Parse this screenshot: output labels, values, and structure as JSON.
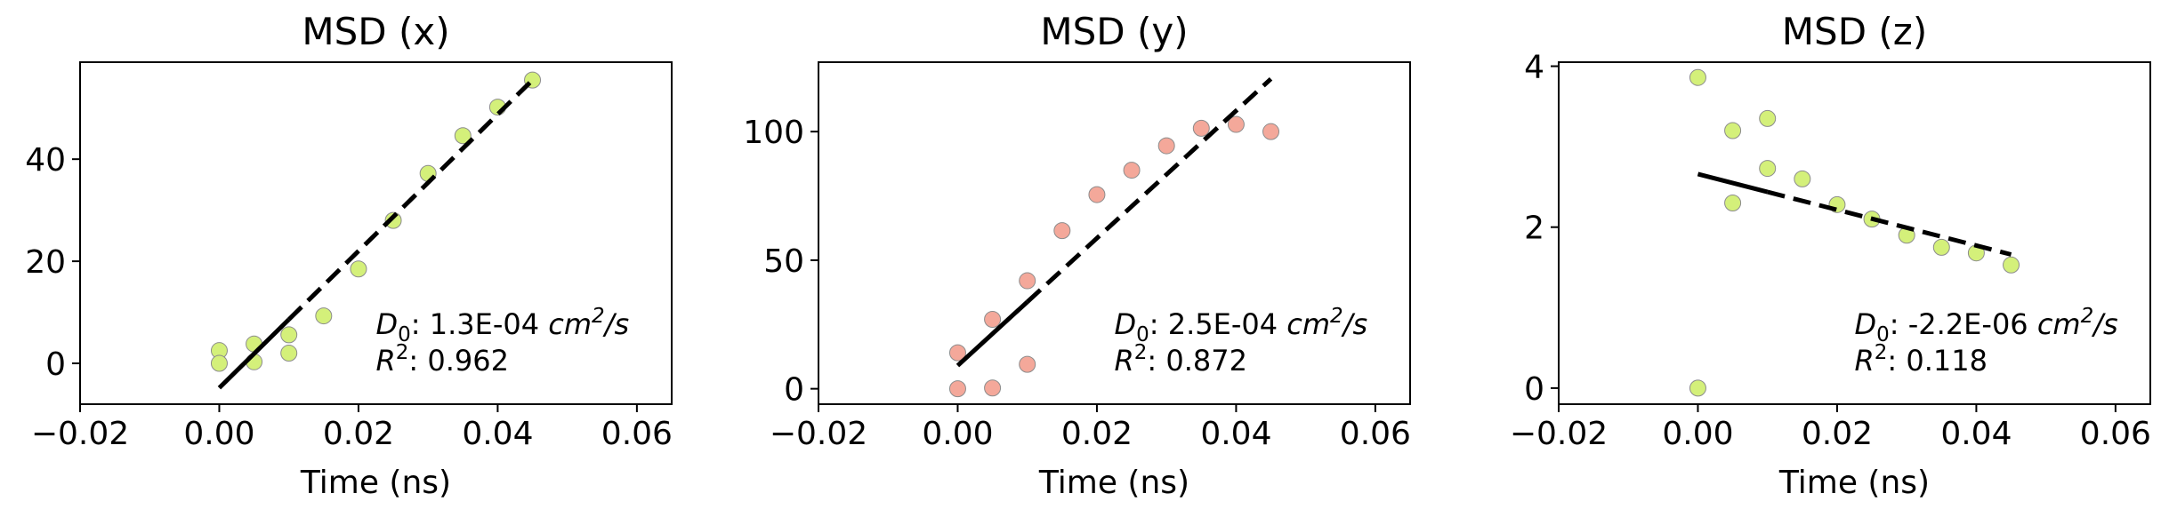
{
  "chart_data": [
    {
      "type": "scatter",
      "title": "MSD (x)",
      "xlabel": "Time (ns)",
      "ylabel": "",
      "xlim": [
        -0.02,
        0.065
      ],
      "ylim": [
        -8,
        59
      ],
      "xticks": [
        -0.02,
        0.0,
        0.02,
        0.04,
        0.06
      ],
      "xtick_labels": [
        "−0.02",
        "0.00",
        "0.02",
        "0.04",
        "0.06"
      ],
      "yticks": [
        0,
        20,
        40
      ],
      "ytick_labels": [
        "0",
        "20",
        "40"
      ],
      "marker_color": "#d4f07a",
      "points": [
        [
          0.0,
          2.5
        ],
        [
          0.0,
          0.0
        ],
        [
          0.005,
          3.8
        ],
        [
          0.005,
          0.3
        ],
        [
          0.01,
          5.6
        ],
        [
          0.01,
          2.0
        ],
        [
          0.015,
          9.3
        ],
        [
          0.02,
          18.5
        ],
        [
          0.025,
          28.0
        ],
        [
          0.03,
          37.2
        ],
        [
          0.035,
          44.6
        ],
        [
          0.04,
          50.2
        ],
        [
          0.045,
          55.5
        ]
      ],
      "fit_line": {
        "x": [
          0.0,
          0.045
        ],
        "y": [
          -4.8,
          55.5
        ],
        "solid_until": 0.01
      },
      "annotation": {
        "d0_label": "D",
        "d0_sub": "0",
        "d0_value": ": 1.3E-04 ",
        "d0_unit": "cm",
        "d0_unit_sup": "2",
        "d0_unit_tail": "/s",
        "r2_label": "R",
        "r2_sup": "2",
        "r2_value": ": 0.962"
      }
    },
    {
      "type": "scatter",
      "title": "MSD (y)",
      "xlabel": "Time (ns)",
      "ylabel": "",
      "xlim": [
        -0.02,
        0.065
      ],
      "ylim": [
        -6,
        127
      ],
      "xticks": [
        -0.02,
        0.0,
        0.02,
        0.04,
        0.06
      ],
      "xtick_labels": [
        "−0.02",
        "0.00",
        "0.02",
        "0.04",
        "0.06"
      ],
      "yticks": [
        0,
        50,
        100
      ],
      "ytick_labels": [
        "0",
        "50",
        "100"
      ],
      "marker_color": "#f4a89a",
      "points": [
        [
          0.0,
          14.0
        ],
        [
          0.0,
          0.0
        ],
        [
          0.005,
          27.0
        ],
        [
          0.005,
          0.3
        ],
        [
          0.01,
          42.0
        ],
        [
          0.01,
          9.5
        ],
        [
          0.015,
          61.5
        ],
        [
          0.02,
          75.5
        ],
        [
          0.025,
          85.0
        ],
        [
          0.03,
          94.5
        ],
        [
          0.035,
          101.3
        ],
        [
          0.04,
          102.8
        ],
        [
          0.045,
          100.0
        ]
      ],
      "fit_line": {
        "x": [
          0.0,
          0.045
        ],
        "y": [
          9.0,
          120.5
        ],
        "solid_until": 0.01
      },
      "annotation": {
        "d0_label": "D",
        "d0_sub": "0",
        "d0_value": ": 2.5E-04 ",
        "d0_unit": "cm",
        "d0_unit_sup": "2",
        "d0_unit_tail": "/s",
        "r2_label": "R",
        "r2_sup": "2",
        "r2_value": ": 0.872"
      }
    },
    {
      "type": "scatter",
      "title": "MSD (z)",
      "xlabel": "Time (ns)",
      "ylabel": "",
      "xlim": [
        -0.02,
        0.065
      ],
      "ylim": [
        -0.2,
        4.05
      ],
      "xticks": [
        -0.02,
        0.0,
        0.02,
        0.04,
        0.06
      ],
      "xtick_labels": [
        "−0.02",
        "0.00",
        "0.02",
        "0.04",
        "0.06"
      ],
      "yticks": [
        0,
        2,
        4
      ],
      "ytick_labels": [
        "0",
        "2",
        "4"
      ],
      "marker_color": "#d4f07a",
      "points": [
        [
          0.0,
          3.86
        ],
        [
          0.0,
          0.0
        ],
        [
          0.005,
          3.2
        ],
        [
          0.005,
          2.3
        ],
        [
          0.01,
          3.35
        ],
        [
          0.01,
          2.73
        ],
        [
          0.015,
          2.6
        ],
        [
          0.02,
          2.28
        ],
        [
          0.025,
          2.1
        ],
        [
          0.03,
          1.9
        ],
        [
          0.035,
          1.75
        ],
        [
          0.04,
          1.68
        ],
        [
          0.045,
          1.53
        ]
      ],
      "fit_line": {
        "x": [
          0.0,
          0.045
        ],
        "y": [
          2.66,
          1.66
        ],
        "solid_until": 0.01
      },
      "annotation": {
        "d0_label": "D",
        "d0_sub": "0",
        "d0_value": ": -2.2E-06 ",
        "d0_unit": "cm",
        "d0_unit_sup": "2",
        "d0_unit_tail": "/s",
        "r2_label": "R",
        "r2_sup": "2",
        "r2_value": ": 0.118"
      }
    }
  ]
}
